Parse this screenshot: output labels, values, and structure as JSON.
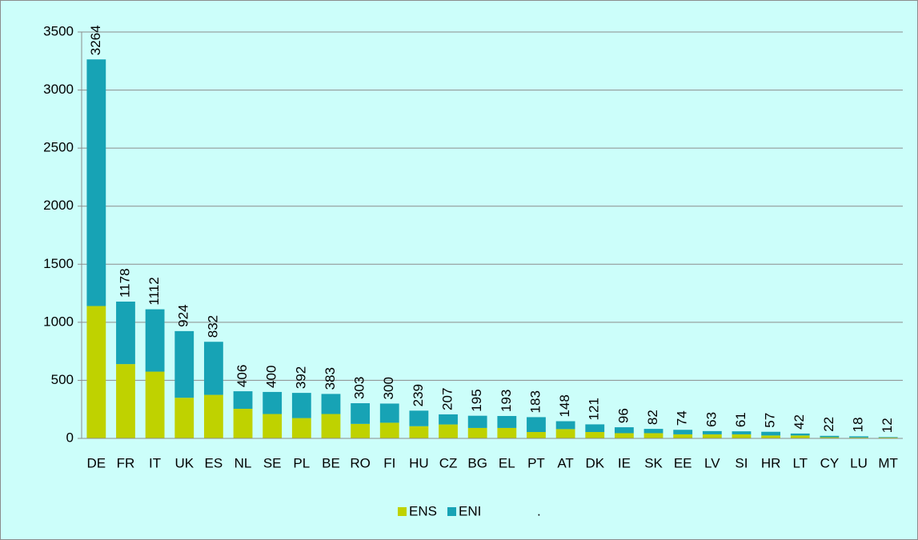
{
  "chart_data": {
    "type": "stacked_bar",
    "categories": [
      "DE",
      "FR",
      "IT",
      "UK",
      "ES",
      "NL",
      "SE",
      "PL",
      "BE",
      "RO",
      "FI",
      "HU",
      "CZ",
      "BG",
      "EL",
      "PT",
      "AT",
      "DK",
      "IE",
      "SK",
      "EE",
      "LV",
      "SI",
      "HR",
      "LT",
      "CY",
      "LU",
      "MT"
    ],
    "series": [
      {
        "name": "ENS",
        "color": "#bfd200",
        "values": [
          1140,
          640,
          575,
          350,
          375,
          255,
          210,
          175,
          210,
          125,
          135,
          105,
          120,
          90,
          90,
          55,
          80,
          55,
          45,
          45,
          35,
          35,
          35,
          25,
          25,
          10,
          8,
          8
        ]
      },
      {
        "name": "ENI",
        "color": "#17a3b5",
        "values": [
          2124,
          538,
          537,
          574,
          457,
          151,
          190,
          217,
          173,
          178,
          165,
          134,
          87,
          105,
          103,
          128,
          68,
          66,
          51,
          37,
          39,
          28,
          26,
          32,
          17,
          12,
          10,
          4
        ]
      }
    ],
    "totals": [
      3264,
      1178,
      1112,
      924,
      832,
      406,
      400,
      392,
      383,
      303,
      300,
      239,
      207,
      195,
      193,
      183,
      148,
      121,
      96,
      82,
      74,
      63,
      61,
      57,
      42,
      22,
      18,
      12
    ],
    "legend_note": ".",
    "ylim": [
      0,
      3500
    ],
    "yticks": [
      0,
      500,
      1000,
      1500,
      2000,
      2500,
      3000,
      3500
    ],
    "grid": true,
    "legend": "bottom"
  }
}
